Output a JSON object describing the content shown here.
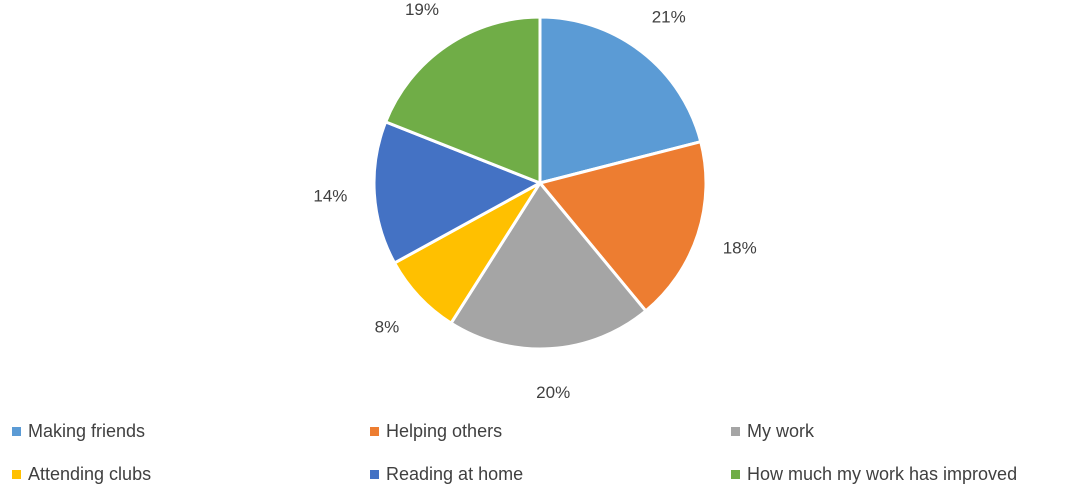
{
  "chart_data": {
    "type": "pie",
    "title": "",
    "categories": [
      "Making friends",
      "Helping others",
      "My work",
      "Attending clubs",
      "Reading at home",
      "How much my work has improved"
    ],
    "values": [
      21,
      18,
      20,
      8,
      14,
      19
    ],
    "value_labels": [
      "21%",
      "18%",
      "20%",
      "8%",
      "14%",
      "19%"
    ],
    "colors": [
      "#5B9BD5",
      "#ED7D31",
      "#A5A5A5",
      "#FFC000",
      "#4472C4",
      "#70AD47"
    ],
    "start_angle": "12 o'clock",
    "direction": "clockwise",
    "legend_position": "bottom"
  }
}
